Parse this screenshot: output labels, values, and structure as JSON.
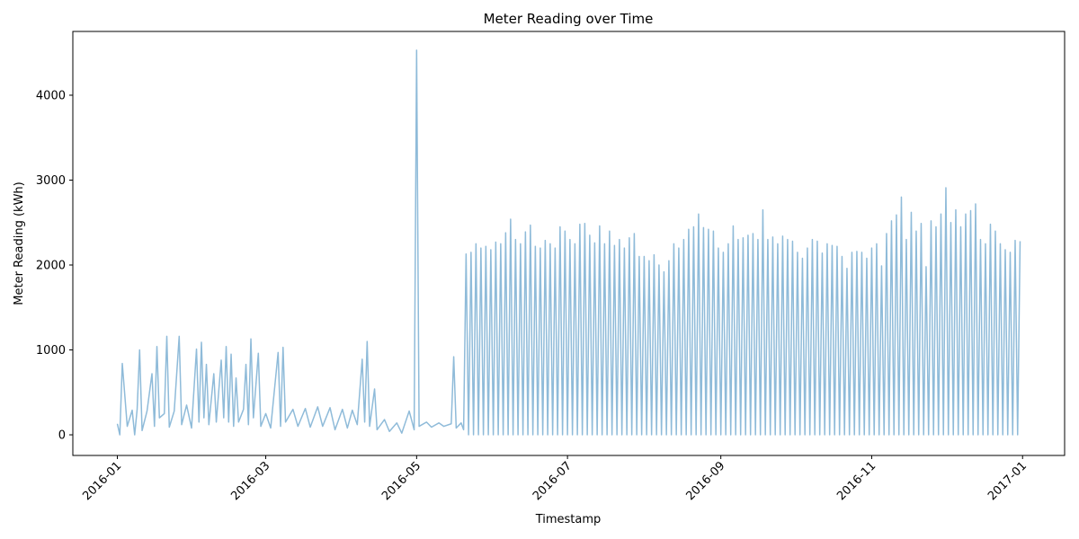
{
  "chart_data": {
    "type": "line",
    "title": "Meter Reading over Time",
    "xlabel": "Timestamp",
    "ylabel": "Meter Reading (kWh)",
    "color": "#8fbbd9",
    "xlim": [
      "2015-12-14",
      "2017-01-18"
    ],
    "xticks": [
      "2016-01",
      "2016-03",
      "2016-05",
      "2016-07",
      "2016-09",
      "2016-11",
      "2017-01"
    ],
    "ylim": [
      -243,
      4751
    ],
    "yticks": [
      0,
      1000,
      2000,
      3000,
      4000
    ],
    "x": [
      "2016-01-01",
      "2016-01-02",
      "2016-01-03",
      "2016-01-05",
      "2016-01-07",
      "2016-01-08",
      "2016-01-09",
      "2016-01-10",
      "2016-01-11",
      "2016-01-13",
      "2016-01-15",
      "2016-01-16",
      "2016-01-17",
      "2016-01-18",
      "2016-01-20",
      "2016-01-21",
      "2016-01-22",
      "2016-01-24",
      "2016-01-26",
      "2016-01-27",
      "2016-01-29",
      "2016-01-31",
      "2016-02-02",
      "2016-02-03",
      "2016-02-04",
      "2016-02-05",
      "2016-02-06",
      "2016-02-07",
      "2016-02-09",
      "2016-02-10",
      "2016-02-12",
      "2016-02-13",
      "2016-02-14",
      "2016-02-15",
      "2016-02-16",
      "2016-02-17",
      "2016-02-18",
      "2016-02-19",
      "2016-02-21",
      "2016-02-22",
      "2016-02-23",
      "2016-02-24",
      "2016-02-25",
      "2016-02-27",
      "2016-02-28",
      "2016-03-01",
      "2016-03-03",
      "2016-03-06",
      "2016-03-07",
      "2016-03-08",
      "2016-03-09",
      "2016-03-12",
      "2016-03-14",
      "2016-03-17",
      "2016-03-19",
      "2016-03-22",
      "2016-03-24",
      "2016-03-27",
      "2016-03-29",
      "2016-04-01",
      "2016-04-03",
      "2016-04-05",
      "2016-04-07",
      "2016-04-09",
      "2016-04-10",
      "2016-04-11",
      "2016-04-12",
      "2016-04-14",
      "2016-04-15",
      "2016-04-18",
      "2016-04-20",
      "2016-04-23",
      "2016-04-25",
      "2016-04-28",
      "2016-04-30",
      "2016-05-01",
      "2016-05-02",
      "2016-05-05",
      "2016-05-07",
      "2016-05-10",
      "2016-05-12",
      "2016-05-15",
      "2016-05-16",
      "2016-05-17",
      "2016-05-19",
      "2016-05-20",
      "2016-05-21",
      "2016-05-22",
      "2016-05-23",
      "2016-05-24",
      "2016-05-25",
      "2016-05-26",
      "2016-05-27",
      "2016-05-28",
      "2016-05-29",
      "2016-05-30",
      "2016-05-31",
      "2016-06-01",
      "2016-06-02",
      "2016-06-03",
      "2016-06-04",
      "2016-06-05",
      "2016-06-06",
      "2016-06-07",
      "2016-06-08",
      "2016-06-09",
      "2016-06-10",
      "2016-06-11",
      "2016-06-12",
      "2016-06-13",
      "2016-06-14",
      "2016-06-15",
      "2016-06-16",
      "2016-06-17",
      "2016-06-18",
      "2016-06-19",
      "2016-06-20",
      "2016-06-21",
      "2016-06-22",
      "2016-06-23",
      "2016-06-24",
      "2016-06-25",
      "2016-06-26",
      "2016-06-27",
      "2016-06-28",
      "2016-06-29",
      "2016-06-30",
      "2016-07-01",
      "2016-07-02",
      "2016-07-03",
      "2016-07-04",
      "2016-07-05",
      "2016-07-06",
      "2016-07-07",
      "2016-07-08",
      "2016-07-09",
      "2016-07-10",
      "2016-07-11",
      "2016-07-12",
      "2016-07-13",
      "2016-07-14",
      "2016-07-15",
      "2016-07-16",
      "2016-07-17",
      "2016-07-18",
      "2016-07-19",
      "2016-07-20",
      "2016-07-21",
      "2016-07-22",
      "2016-07-23",
      "2016-07-24",
      "2016-07-25",
      "2016-07-26",
      "2016-07-27",
      "2016-07-28",
      "2016-07-29",
      "2016-07-30",
      "2016-07-31",
      "2016-08-01",
      "2016-08-02",
      "2016-08-03",
      "2016-08-04",
      "2016-08-05",
      "2016-08-06",
      "2016-08-07",
      "2016-08-08",
      "2016-08-09",
      "2016-08-10",
      "2016-08-11",
      "2016-08-12",
      "2016-08-13",
      "2016-08-14",
      "2016-08-15",
      "2016-08-16",
      "2016-08-17",
      "2016-08-18",
      "2016-08-19",
      "2016-08-20",
      "2016-08-21",
      "2016-08-22",
      "2016-08-23",
      "2016-08-24",
      "2016-08-25",
      "2016-08-26",
      "2016-08-27",
      "2016-08-28",
      "2016-08-29",
      "2016-08-30",
      "2016-08-31",
      "2016-09-01",
      "2016-09-02",
      "2016-09-03",
      "2016-09-04",
      "2016-09-05",
      "2016-09-06",
      "2016-09-07",
      "2016-09-08",
      "2016-09-09",
      "2016-09-10",
      "2016-09-11",
      "2016-09-12",
      "2016-09-13",
      "2016-09-14",
      "2016-09-15",
      "2016-09-16",
      "2016-09-17",
      "2016-09-18",
      "2016-09-19",
      "2016-09-20",
      "2016-09-21",
      "2016-09-22",
      "2016-09-23",
      "2016-09-24",
      "2016-09-25",
      "2016-09-26",
      "2016-09-27",
      "2016-09-28",
      "2016-09-29",
      "2016-09-30",
      "2016-10-01",
      "2016-10-02",
      "2016-10-03",
      "2016-10-04",
      "2016-10-05",
      "2016-10-06",
      "2016-10-07",
      "2016-10-08",
      "2016-10-09",
      "2016-10-10",
      "2016-10-11",
      "2016-10-12",
      "2016-10-13",
      "2016-10-14",
      "2016-10-15",
      "2016-10-16",
      "2016-10-17",
      "2016-10-18",
      "2016-10-19",
      "2016-10-20",
      "2016-10-21",
      "2016-10-22",
      "2016-10-23",
      "2016-10-24",
      "2016-10-25",
      "2016-10-26",
      "2016-10-27",
      "2016-10-28",
      "2016-10-29",
      "2016-10-30",
      "2016-10-31",
      "2016-11-01",
      "2016-11-02",
      "2016-11-03",
      "2016-11-04",
      "2016-11-05",
      "2016-11-06",
      "2016-11-07",
      "2016-11-08",
      "2016-11-09",
      "2016-11-10",
      "2016-11-11",
      "2016-11-12",
      "2016-11-13",
      "2016-11-14",
      "2016-11-15",
      "2016-11-16",
      "2016-11-17",
      "2016-11-18",
      "2016-11-19",
      "2016-11-20",
      "2016-11-21",
      "2016-11-22",
      "2016-11-23",
      "2016-11-24",
      "2016-11-25",
      "2016-11-26",
      "2016-11-27",
      "2016-11-28",
      "2016-11-29",
      "2016-11-30",
      "2016-12-01",
      "2016-12-02",
      "2016-12-03",
      "2016-12-04",
      "2016-12-05",
      "2016-12-06",
      "2016-12-07",
      "2016-12-08",
      "2016-12-09",
      "2016-12-10",
      "2016-12-11",
      "2016-12-12",
      "2016-12-13",
      "2016-12-14",
      "2016-12-15",
      "2016-12-16",
      "2016-12-17",
      "2016-12-18",
      "2016-12-19",
      "2016-12-20",
      "2016-12-21",
      "2016-12-22",
      "2016-12-23",
      "2016-12-24",
      "2016-12-25",
      "2016-12-26",
      "2016-12-27",
      "2016-12-28",
      "2016-12-29",
      "2016-12-30",
      "2016-12-31"
    ],
    "series": [
      {
        "color": "#8fbbd9",
        "values": [
          130,
          0,
          840,
          100,
          290,
          0,
          300,
          1000,
          50,
          280,
          720,
          100,
          1040,
          200,
          250,
          1160,
          90,
          280,
          1160,
          120,
          350,
          80,
          1010,
          150,
          1090,
          200,
          830,
          120,
          720,
          150,
          880,
          200,
          1040,
          150,
          950,
          100,
          670,
          150,
          300,
          830,
          120,
          1130,
          200,
          960,
          100,
          250,
          80,
          970,
          100,
          1030,
          150,
          300,
          100,
          310,
          90,
          330,
          100,
          320,
          60,
          300,
          80,
          290,
          120,
          890,
          150,
          1100,
          100,
          540,
          60,
          180,
          40,
          140,
          20,
          280,
          60,
          4530,
          100,
          150,
          90,
          140,
          100,
          130,
          920,
          80,
          140,
          60,
          2130,
          0,
          2150,
          0,
          2250,
          0,
          2200,
          0,
          2220,
          0,
          2180,
          0,
          2270,
          0,
          2250,
          0,
          2380,
          0,
          2540,
          0,
          2300,
          0,
          2250,
          0,
          2390,
          0,
          2470,
          0,
          2220,
          0,
          2200,
          0,
          2290,
          0,
          2250,
          0,
          2200,
          0,
          2450,
          0,
          2400,
          0,
          2300,
          0,
          2250,
          0,
          2480,
          0,
          2490,
          0,
          2350,
          0,
          2260,
          0,
          2460,
          0,
          2250,
          0,
          2400,
          0,
          2230,
          0,
          2300,
          0,
          2200,
          0,
          2320,
          0,
          2370,
          0,
          2100,
          0,
          2100,
          0,
          2050,
          0,
          2120,
          0,
          2000,
          0,
          1920,
          0,
          2050,
          0,
          2250,
          0,
          2200,
          0,
          2300,
          0,
          2420,
          0,
          2450,
          0,
          2600,
          0,
          2440,
          0,
          2420,
          0,
          2400,
          0,
          2200,
          0,
          2150,
          0,
          2250,
          0,
          2460,
          0,
          2300,
          0,
          2320,
          0,
          2350,
          0,
          2370,
          0,
          2300,
          0,
          2650,
          0,
          2300,
          0,
          2330,
          0,
          2250,
          0,
          2340,
          0,
          2300,
          0,
          2280,
          0,
          2150,
          0,
          2080,
          0,
          2200,
          0,
          2300,
          0,
          2280,
          0,
          2140,
          0,
          2250,
          0,
          2230,
          0,
          2220,
          0,
          2100,
          0,
          1960,
          0,
          2150,
          0,
          2160,
          0,
          2150,
          0,
          2080,
          0,
          2200,
          0,
          2250,
          0,
          1990,
          0,
          2370,
          0,
          2520,
          0,
          2590,
          0,
          2800,
          0,
          2300,
          0,
          2620,
          0,
          2400,
          0,
          2490,
          0,
          1980,
          0,
          2520,
          0,
          2450,
          0,
          2600,
          0,
          2910,
          0,
          2500,
          0,
          2650,
          0,
          2450,
          0,
          2600,
          0,
          2640,
          0,
          2720,
          0,
          2300,
          0,
          2250,
          0,
          2480,
          0,
          2400,
          0,
          2250,
          0,
          2180,
          0,
          2150,
          0,
          2290,
          0,
          2280
        ]
      }
    ]
  }
}
